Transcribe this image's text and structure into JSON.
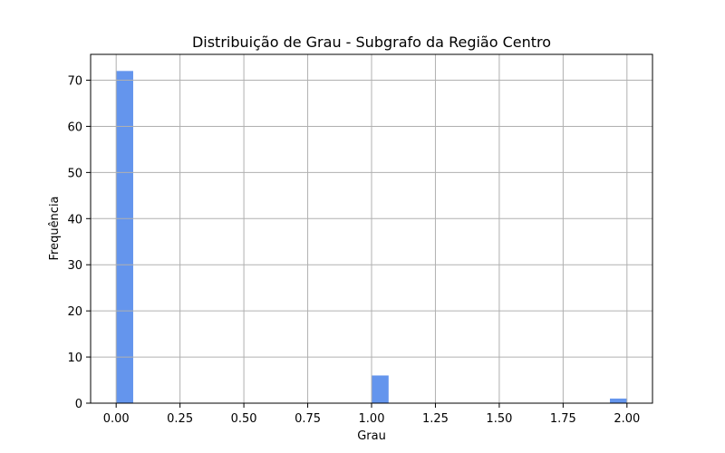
{
  "chart_data": {
    "type": "bar",
    "title": "Distribuição de Grau - Subgrafo da Região Centro",
    "xlabel": "Grau",
    "ylabel": "Frequência",
    "xlim": [
      -0.1,
      2.1
    ],
    "ylim": [
      0,
      75.6
    ],
    "x_ticks": [
      "0.00",
      "0.25",
      "0.50",
      "0.75",
      "1.00",
      "1.25",
      "1.50",
      "1.75",
      "2.00"
    ],
    "y_ticks": [
      "0",
      "10",
      "20",
      "30",
      "40",
      "50",
      "60",
      "70"
    ],
    "grid": true,
    "bar_color": "#6495ED",
    "bin_width": 0.0667,
    "bins": [
      {
        "x_start": 0.0,
        "x_end": 0.0667,
        "value": 72
      },
      {
        "x_start": 1.0,
        "x_end": 1.0667,
        "value": 6
      },
      {
        "x_start": 1.9333,
        "x_end": 2.0,
        "value": 1
      }
    ]
  }
}
